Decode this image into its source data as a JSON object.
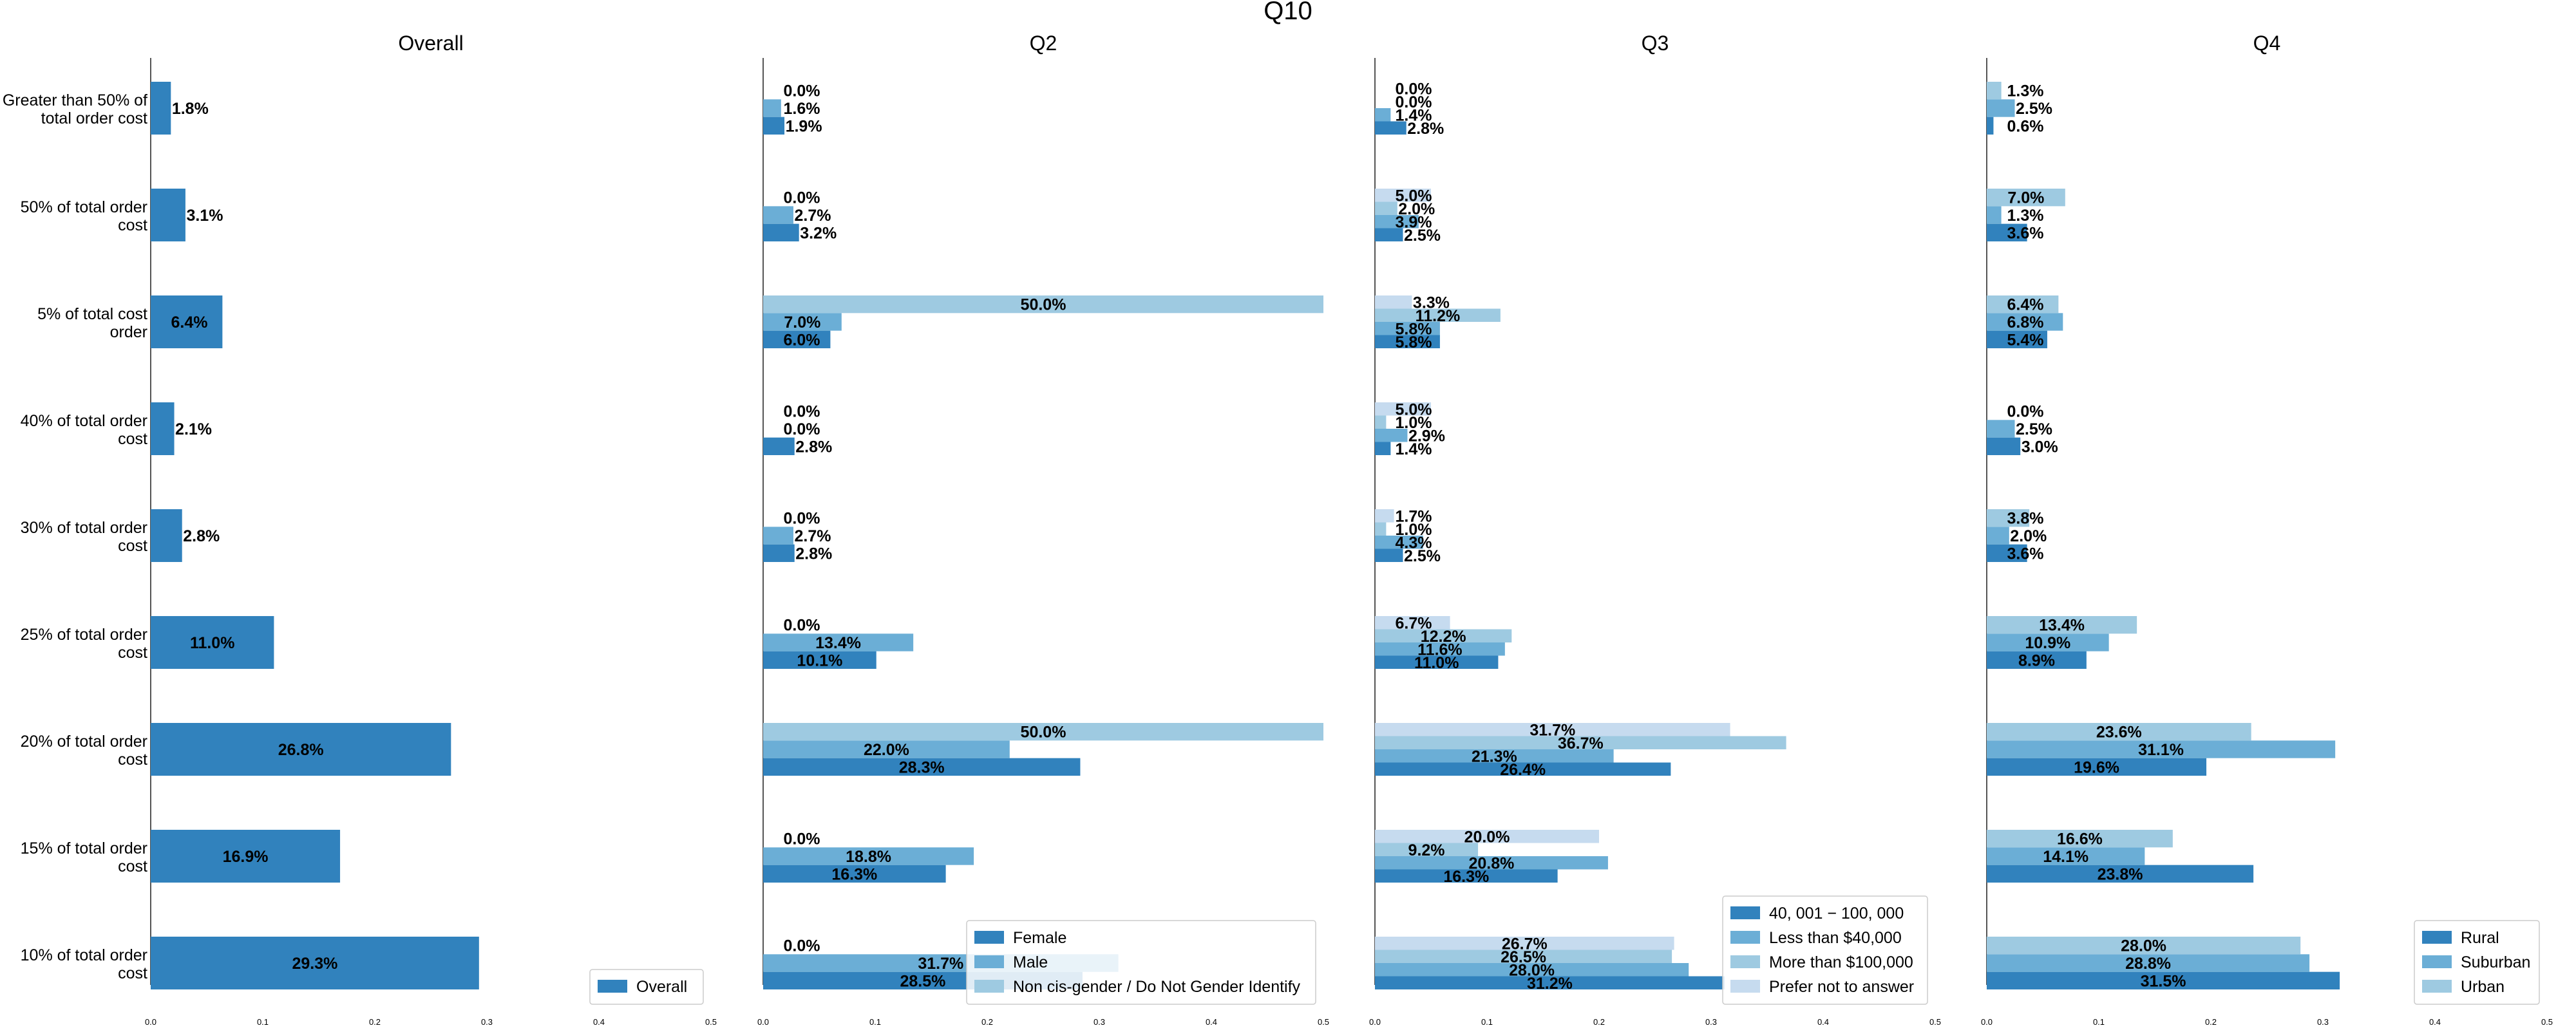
{
  "chart_data": {
    "type": "bar",
    "orientation": "horizontal",
    "title": "Q10",
    "categories": [
      "Greater than 50% of total order cost",
      "50% of total order cost",
      "5% of total cost order",
      "40% of total order cost",
      "30% of total order cost",
      "25% of total order cost",
      "20% of total order cost",
      "15% of total order cost",
      "10% of total order cost"
    ],
    "category_lines": [
      [
        "Greater than 50% of",
        "total order cost"
      ],
      [
        "50% of total order",
        "cost"
      ],
      [
        "5% of total cost",
        "order"
      ],
      [
        "40% of total order",
        "cost"
      ],
      [
        "30% of total order",
        "cost"
      ],
      [
        "25% of total order",
        "cost"
      ],
      [
        "20% of total order",
        "cost"
      ],
      [
        "15% of total order",
        "cost"
      ],
      [
        "10% of total order",
        "cost"
      ]
    ],
    "xlim": [
      0,
      0.5
    ],
    "xticks": [
      "0.0",
      "0.1",
      "0.2",
      "0.3",
      "0.4",
      "0.5"
    ],
    "grid": false,
    "panels": [
      {
        "title": "Overall",
        "legend": "bottom-right",
        "series": [
          {
            "name": "Overall",
            "color": "#3182bd",
            "values": [
              0.018,
              0.031,
              0.064,
              0.021,
              0.028,
              0.11,
              0.268,
              0.169,
              0.293
            ],
            "labels": [
              "1.8%",
              "3.1%",
              "6.4%",
              "2.1%",
              "2.8%",
              "11.0%",
              "26.8%",
              "16.9%",
              "29.3%"
            ]
          }
        ]
      },
      {
        "title": "Q2",
        "legend": "bottom-right",
        "series": [
          {
            "name": "Female",
            "color": "#3182bd",
            "values": [
              0.019,
              0.032,
              0.06,
              0.028,
              0.028,
              0.101,
              0.283,
              0.163,
              0.285
            ],
            "labels": [
              "1.9%",
              "3.2%",
              "6.0%",
              "2.8%",
              "2.8%",
              "10.1%",
              "28.3%",
              "16.3%",
              "28.5%"
            ]
          },
          {
            "name": "Male",
            "color": "#6baed6",
            "values": [
              0.016,
              0.027,
              0.07,
              0.0,
              0.027,
              0.134,
              0.22,
              0.188,
              0.317
            ],
            "labels": [
              "1.6%",
              "2.7%",
              "7.0%",
              "0.0%",
              "2.7%",
              "13.4%",
              "22.0%",
              "18.8%",
              "31.7%"
            ]
          },
          {
            "name": "Non cis-gender / Do Not Gender Identify",
            "color": "#9ecae1",
            "values": [
              0.0,
              0.0,
              0.5,
              0.0,
              0.0,
              0.0,
              0.5,
              0.0,
              0.0
            ],
            "labels": [
              "0.0%",
              "0.0%",
              "50.0%",
              "0.0%",
              "0.0%",
              "0.0%",
              "50.0%",
              "0.0%",
              "0.0%"
            ]
          }
        ]
      },
      {
        "title": "Q3",
        "legend": "bottom-right",
        "series": [
          {
            "name": "$40,001 - $100,000",
            "legend_label": "40, 001 − 100, 000",
            "color": "#3182bd",
            "values": [
              0.028,
              0.025,
              0.058,
              0.014,
              0.025,
              0.11,
              0.264,
              0.163,
              0.312
            ],
            "labels": [
              "2.8%",
              "2.5%",
              "5.8%",
              "1.4%",
              "2.5%",
              "11.0%",
              "26.4%",
              "16.3%",
              "31.2%"
            ]
          },
          {
            "name": "Less than $40,000",
            "color": "#6baed6",
            "values": [
              0.014,
              0.039,
              0.058,
              0.029,
              0.043,
              0.116,
              0.213,
              0.208,
              0.28
            ],
            "labels": [
              "1.4%",
              "3.9%",
              "5.8%",
              "2.9%",
              "4.3%",
              "11.6%",
              "21.3%",
              "20.8%",
              "28.0%"
            ]
          },
          {
            "name": "More than $100,000",
            "color": "#9ecae1",
            "values": [
              0.0,
              0.02,
              0.112,
              0.01,
              0.01,
              0.122,
              0.367,
              0.092,
              0.265
            ],
            "labels": [
              "0.0%",
              "2.0%",
              "11.2%",
              "1.0%",
              "1.0%",
              "12.2%",
              "36.7%",
              "9.2%",
              "26.5%"
            ]
          },
          {
            "name": "Prefer not to answer",
            "color": "#c6dbef",
            "values": [
              0.0,
              0.05,
              0.033,
              0.05,
              0.017,
              0.067,
              0.317,
              0.2,
              0.267
            ],
            "labels": [
              "0.0%",
              "5.0%",
              "3.3%",
              "5.0%",
              "1.7%",
              "6.7%",
              "31.7%",
              "20.0%",
              "26.7%"
            ]
          }
        ]
      },
      {
        "title": "Q4",
        "legend": "bottom-right",
        "series": [
          {
            "name": "Rural",
            "color": "#3182bd",
            "values": [
              0.006,
              0.036,
              0.054,
              0.03,
              0.036,
              0.089,
              0.196,
              0.238,
              0.315
            ],
            "labels": [
              "0.6%",
              "3.6%",
              "5.4%",
              "3.0%",
              "3.6%",
              "8.9%",
              "19.6%",
              "23.8%",
              "31.5%"
            ]
          },
          {
            "name": "Suburban",
            "color": "#6baed6",
            "values": [
              0.025,
              0.013,
              0.068,
              0.025,
              0.02,
              0.109,
              0.311,
              0.141,
              0.288
            ],
            "labels": [
              "2.5%",
              "1.3%",
              "6.8%",
              "2.5%",
              "2.0%",
              "10.9%",
              "31.1%",
              "14.1%",
              "28.8%"
            ]
          },
          {
            "name": "Urban",
            "color": "#9ecae1",
            "values": [
              0.013,
              0.07,
              0.064,
              0.0,
              0.038,
              0.134,
              0.236,
              0.166,
              0.28
            ],
            "labels": [
              "1.3%",
              "7.0%",
              "6.4%",
              "0.0%",
              "3.8%",
              "13.4%",
              "23.6%",
              "16.6%",
              "28.0%"
            ]
          }
        ]
      }
    ]
  }
}
